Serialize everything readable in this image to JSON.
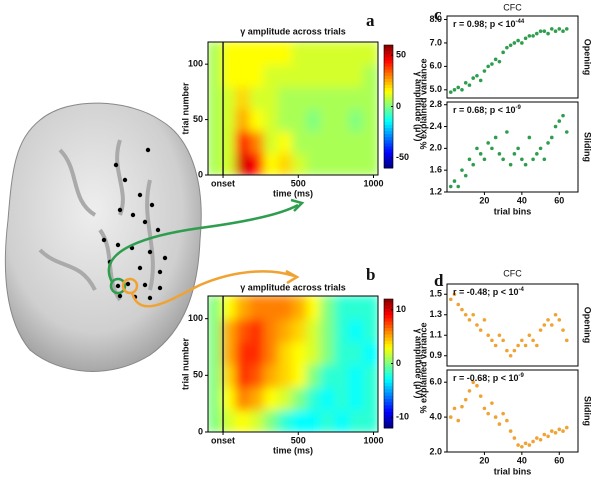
{
  "chart_data": [
    {
      "type": "heatmap",
      "panel": "a",
      "title": "γ amplitude across trials",
      "xlabel": "time (ms)",
      "ylabel": "trial number",
      "colorbar_label": "γ amplitude (μV)",
      "colormap": "jet",
      "clim": [
        -60,
        60
      ],
      "cticks": [
        50,
        0,
        -50
      ],
      "xlim": [
        -100,
        1030
      ],
      "xticks": [
        {
          "value": 0,
          "label": "onset"
        },
        500,
        1000
      ],
      "ylim": [
        0,
        120
      ],
      "yticks": [
        0,
        50,
        100
      ],
      "values": [
        [
          5,
          10,
          50,
          45,
          15,
          20,
          10,
          5,
          5,
          5,
          5,
          5
        ],
        [
          5,
          10,
          45,
          30,
          10,
          15,
          5,
          5,
          5,
          5,
          5,
          5
        ],
        [
          5,
          10,
          25,
          15,
          10,
          5,
          5,
          0,
          5,
          5,
          0,
          5
        ],
        [
          5,
          10,
          20,
          10,
          10,
          5,
          5,
          5,
          5,
          5,
          5,
          5
        ],
        [
          5,
          15,
          15,
          15,
          10,
          10,
          10,
          10,
          10,
          10,
          10,
          5
        ],
        [
          5,
          15,
          15,
          15,
          15,
          15,
          10,
          10,
          10,
          10,
          10,
          10
        ]
      ]
    },
    {
      "type": "heatmap",
      "panel": "b",
      "title": "γ amplitude across trials",
      "xlabel": "time (ms)",
      "ylabel": "trial number",
      "colorbar_label": "γ amplitude (μV)",
      "colormap": "jet",
      "clim": [
        -12,
        12
      ],
      "cticks": [
        10,
        0,
        -10
      ],
      "xlim": [
        -100,
        1030
      ],
      "xticks": [
        {
          "value": 0,
          "label": "onset"
        },
        500,
        1000
      ],
      "ylim": [
        0,
        120
      ],
      "yticks": [
        0,
        50,
        100
      ],
      "values": [
        [
          0,
          2,
          3,
          2,
          0,
          -2,
          -3,
          -3,
          -2,
          -3,
          -2,
          -2
        ],
        [
          0,
          3,
          6,
          5,
          3,
          2,
          0,
          -2,
          -3,
          -2,
          -3,
          -2
        ],
        [
          0,
          4,
          8,
          7,
          5,
          4,
          3,
          0,
          -2,
          -2,
          -3,
          -2
        ],
        [
          0,
          5,
          8,
          8,
          6,
          4,
          3,
          2,
          0,
          -2,
          -2,
          -3
        ],
        [
          0,
          5,
          7,
          8,
          6,
          5,
          4,
          2,
          0,
          -2,
          -3,
          -2
        ],
        [
          0,
          3,
          5,
          6,
          6,
          6,
          5,
          3,
          0,
          -2,
          -2,
          -2
        ]
      ]
    },
    {
      "type": "scatter",
      "panel": "c",
      "title": "CFC",
      "ylabel": "% explained variance",
      "side_label": "Opening",
      "annotation": "r = 0.98; p < 10",
      "annotation_exponent": "-44",
      "color": "#2e9e4e",
      "xlim": [
        0,
        70
      ],
      "ylim": [
        4.65,
        8.15
      ],
      "yticks": [
        {
          "value": 5,
          "label": "5.0"
        },
        {
          "value": 6,
          "label": "6.0"
        },
        {
          "value": 7,
          "label": "7.0"
        },
        {
          "value": 8,
          "label": "8.0"
        }
      ],
      "x": [
        2,
        4,
        6,
        8,
        10,
        12,
        14,
        16,
        18,
        20,
        22,
        24,
        26,
        28,
        30,
        32,
        34,
        36,
        38,
        40,
        42,
        44,
        46,
        48,
        50,
        52,
        54,
        56,
        58,
        60,
        62,
        64
      ],
      "values": [
        4.9,
        5.0,
        5.1,
        5.0,
        5.3,
        5.2,
        5.5,
        5.6,
        5.4,
        5.8,
        6.0,
        6.1,
        6.3,
        6.2,
        6.6,
        6.8,
        6.9,
        7.0,
        7.1,
        7.0,
        7.2,
        7.3,
        7.3,
        7.4,
        7.5,
        7.5,
        7.4,
        7.6,
        7.5,
        7.6,
        7.5,
        7.6
      ]
    },
    {
      "type": "scatter",
      "side_label": "Sliding",
      "xlabel": "trial bins",
      "annotation": "r = 0.68; p < 10",
      "annotation_exponent": "-9",
      "color": "#2e9e4e",
      "xlim": [
        0,
        70
      ],
      "xticks": [
        20,
        40,
        60
      ],
      "ylim": [
        1.2,
        2.85
      ],
      "yticks": [
        1.2,
        1.6,
        {
          "value": 2,
          "label": "2.0"
        },
        2.4,
        2.8
      ],
      "x": [
        2,
        4,
        6,
        8,
        10,
        12,
        14,
        16,
        18,
        20,
        22,
        24,
        26,
        28,
        30,
        32,
        34,
        36,
        38,
        40,
        42,
        44,
        46,
        48,
        50,
        52,
        54,
        56,
        58,
        60,
        62,
        64
      ],
      "values": [
        1.3,
        1.4,
        1.3,
        1.6,
        1.5,
        1.8,
        1.7,
        2.0,
        1.9,
        1.8,
        2.1,
        2.0,
        2.2,
        1.9,
        1.8,
        2.3,
        1.7,
        1.9,
        2.0,
        1.8,
        1.7,
        2.2,
        1.8,
        1.9,
        2.0,
        1.8,
        2.1,
        2.2,
        2.4,
        2.5,
        2.6,
        2.3
      ]
    },
    {
      "type": "scatter",
      "panel": "d",
      "title": "CFC",
      "ylabel": "% explained variance",
      "side_label": "Opening",
      "annotation": "r = -0.48; p < 10",
      "annotation_exponent": "-4",
      "color": "#f0a232",
      "xlim": [
        0,
        70
      ],
      "ylim": [
        0.8,
        1.6
      ],
      "yticks": [
        0.9,
        1.1,
        1.3,
        1.5
      ],
      "x": [
        2,
        4,
        6,
        8,
        10,
        12,
        14,
        16,
        18,
        20,
        22,
        24,
        26,
        28,
        30,
        32,
        34,
        36,
        38,
        40,
        42,
        44,
        46,
        48,
        50,
        52,
        54,
        56,
        58,
        60,
        62,
        64
      ],
      "values": [
        1.45,
        1.5,
        1.4,
        1.35,
        1.3,
        1.25,
        1.3,
        1.2,
        1.15,
        1.25,
        1.1,
        1.05,
        1.0,
        1.1,
        1.05,
        0.95,
        0.9,
        0.95,
        1.0,
        1.05,
        1.0,
        1.1,
        1.05,
        1.0,
        1.15,
        1.2,
        1.25,
        1.2,
        1.3,
        1.25,
        1.15,
        1.05
      ]
    },
    {
      "type": "scatter",
      "side_label": "Sliding",
      "xlabel": "trial bins",
      "annotation": "r = -0.68; p < 10",
      "annotation_exponent": "-9",
      "color": "#f0a232",
      "xlim": [
        0,
        70
      ],
      "xticks": [
        20,
        40,
        60
      ],
      "ylim": [
        2.0,
        6.7
      ],
      "yticks": [
        {
          "value": 2,
          "label": "2.0"
        },
        {
          "value": 4,
          "label": "4.0"
        },
        {
          "value": 6,
          "label": "6.0"
        }
      ],
      "x": [
        2,
        4,
        6,
        8,
        10,
        12,
        14,
        16,
        18,
        20,
        22,
        24,
        26,
        28,
        30,
        32,
        34,
        36,
        38,
        40,
        42,
        44,
        46,
        48,
        50,
        52,
        54,
        56,
        58,
        60,
        62,
        64
      ],
      "values": [
        4.0,
        4.5,
        3.8,
        4.6,
        5.0,
        5.5,
        6.0,
        5.8,
        5.2,
        4.5,
        4.2,
        4.8,
        4.0,
        3.6,
        4.2,
        3.8,
        3.2,
        2.8,
        2.4,
        2.3,
        2.5,
        2.4,
        2.6,
        2.8,
        2.7,
        3.0,
        2.9,
        3.2,
        3.1,
        3.3,
        3.2,
        3.4
      ]
    }
  ]
}
